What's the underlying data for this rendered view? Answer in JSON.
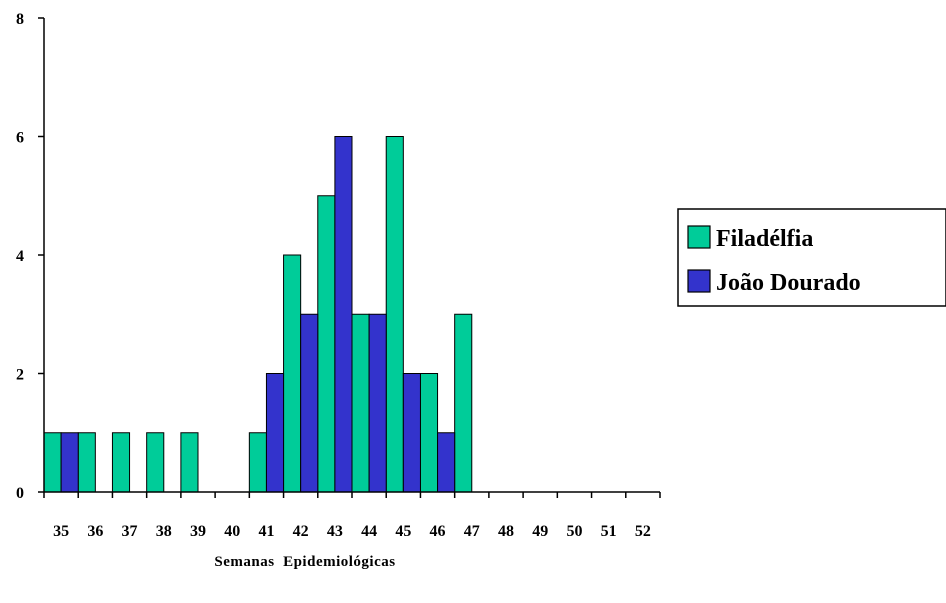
{
  "chart_data": {
    "type": "bar",
    "categories": [
      "35",
      "36",
      "37",
      "38",
      "39",
      "40",
      "41",
      "42",
      "43",
      "44",
      "45",
      "46",
      "47",
      "48",
      "49",
      "50",
      "51",
      "52"
    ],
    "series": [
      {
        "name": "Filadélfia",
        "color": "#00CC99",
        "values": [
          1,
          1,
          1,
          1,
          1,
          0,
          1,
          4,
          5,
          3,
          6,
          2,
          3,
          0,
          0,
          0,
          0,
          0
        ]
      },
      {
        "name": "João Dourado",
        "color": "#3333CC",
        "values": [
          1,
          0,
          0,
          0,
          0,
          0,
          2,
          3,
          6,
          3,
          2,
          1,
          0,
          0,
          0,
          0,
          0,
          0
        ]
      }
    ],
    "title": "",
    "xlabel": "Semanas  Epidemiológicas",
    "ylabel": "",
    "ylim": [
      0,
      8
    ],
    "yticks": [
      0,
      2,
      4,
      6,
      8
    ],
    "grid": false,
    "legend_position": "right"
  }
}
